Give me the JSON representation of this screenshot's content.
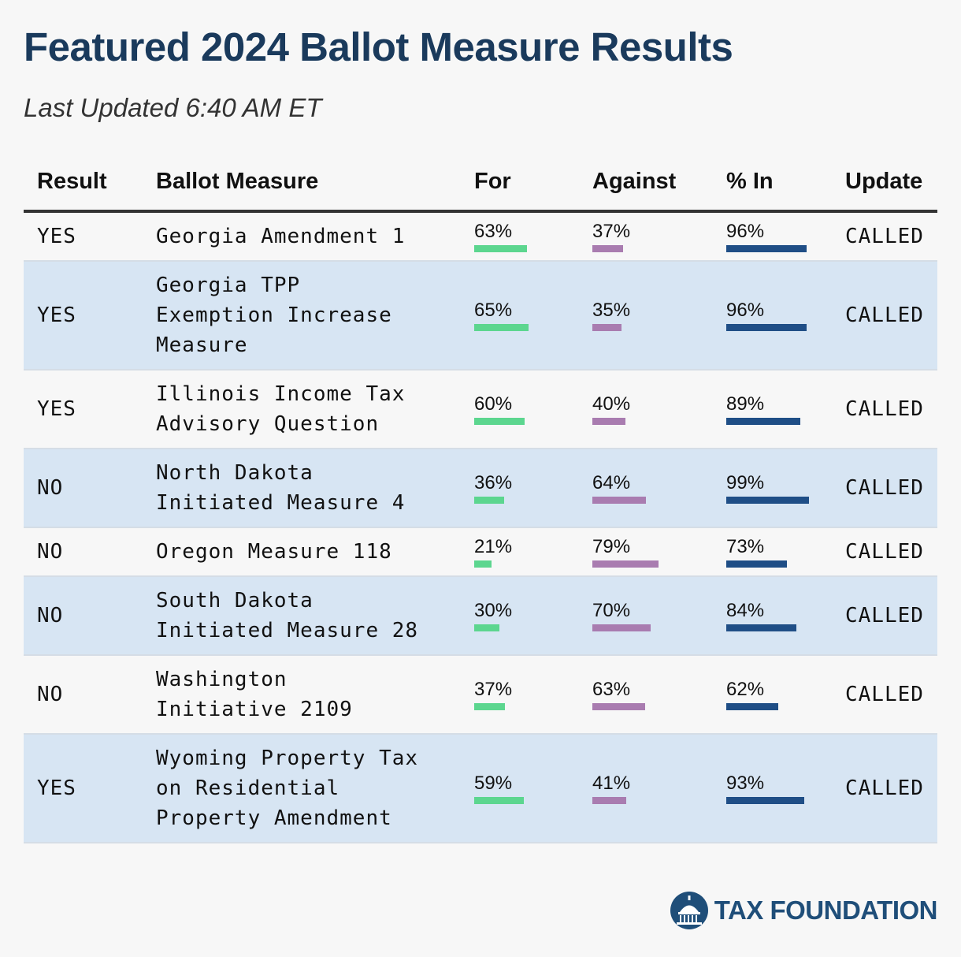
{
  "title": "Featured 2024 Ballot Measure Results",
  "subtitle": "Last Updated 6:40 AM ET",
  "chart_data": {
    "type": "table",
    "columns": [
      "Result",
      "Ballot Measure",
      "For",
      "Against",
      "% In",
      "Update"
    ],
    "rows": [
      {
        "result": "YES",
        "measure": "Georgia Amendment 1",
        "for": 63,
        "against": 37,
        "pct_in": 96,
        "update": "CALLED"
      },
      {
        "result": "YES",
        "measure": "Georgia TPP\nExemption Increase\nMeasure",
        "for": 65,
        "against": 35,
        "pct_in": 96,
        "update": "CALLED"
      },
      {
        "result": "YES",
        "measure": "Illinois Income Tax\nAdvisory Question",
        "for": 60,
        "against": 40,
        "pct_in": 89,
        "update": "CALLED"
      },
      {
        "result": "NO",
        "measure": "North Dakota\nInitiated Measure 4",
        "for": 36,
        "against": 64,
        "pct_in": 99,
        "update": "CALLED"
      },
      {
        "result": "NO",
        "measure": "Oregon Measure 118",
        "for": 21,
        "against": 79,
        "pct_in": 73,
        "update": "CALLED"
      },
      {
        "result": "NO",
        "measure": "South Dakota\nInitiated Measure 28",
        "for": 30,
        "against": 70,
        "pct_in": 84,
        "update": "CALLED"
      },
      {
        "result": "NO",
        "measure": "Washington\nInitiative 2109",
        "for": 37,
        "against": 63,
        "pct_in": 62,
        "update": "CALLED"
      },
      {
        "result": "YES",
        "measure": "Wyoming Property Tax\non Residential\nProperty Amendment",
        "for": 59,
        "against": 41,
        "pct_in": 93,
        "update": "CALLED"
      }
    ],
    "colors": {
      "for": "#5cd68f",
      "against": "#a97cb0",
      "pct_in": "#1f4e86"
    }
  },
  "logo": {
    "text": "TAX FOUNDATION"
  }
}
